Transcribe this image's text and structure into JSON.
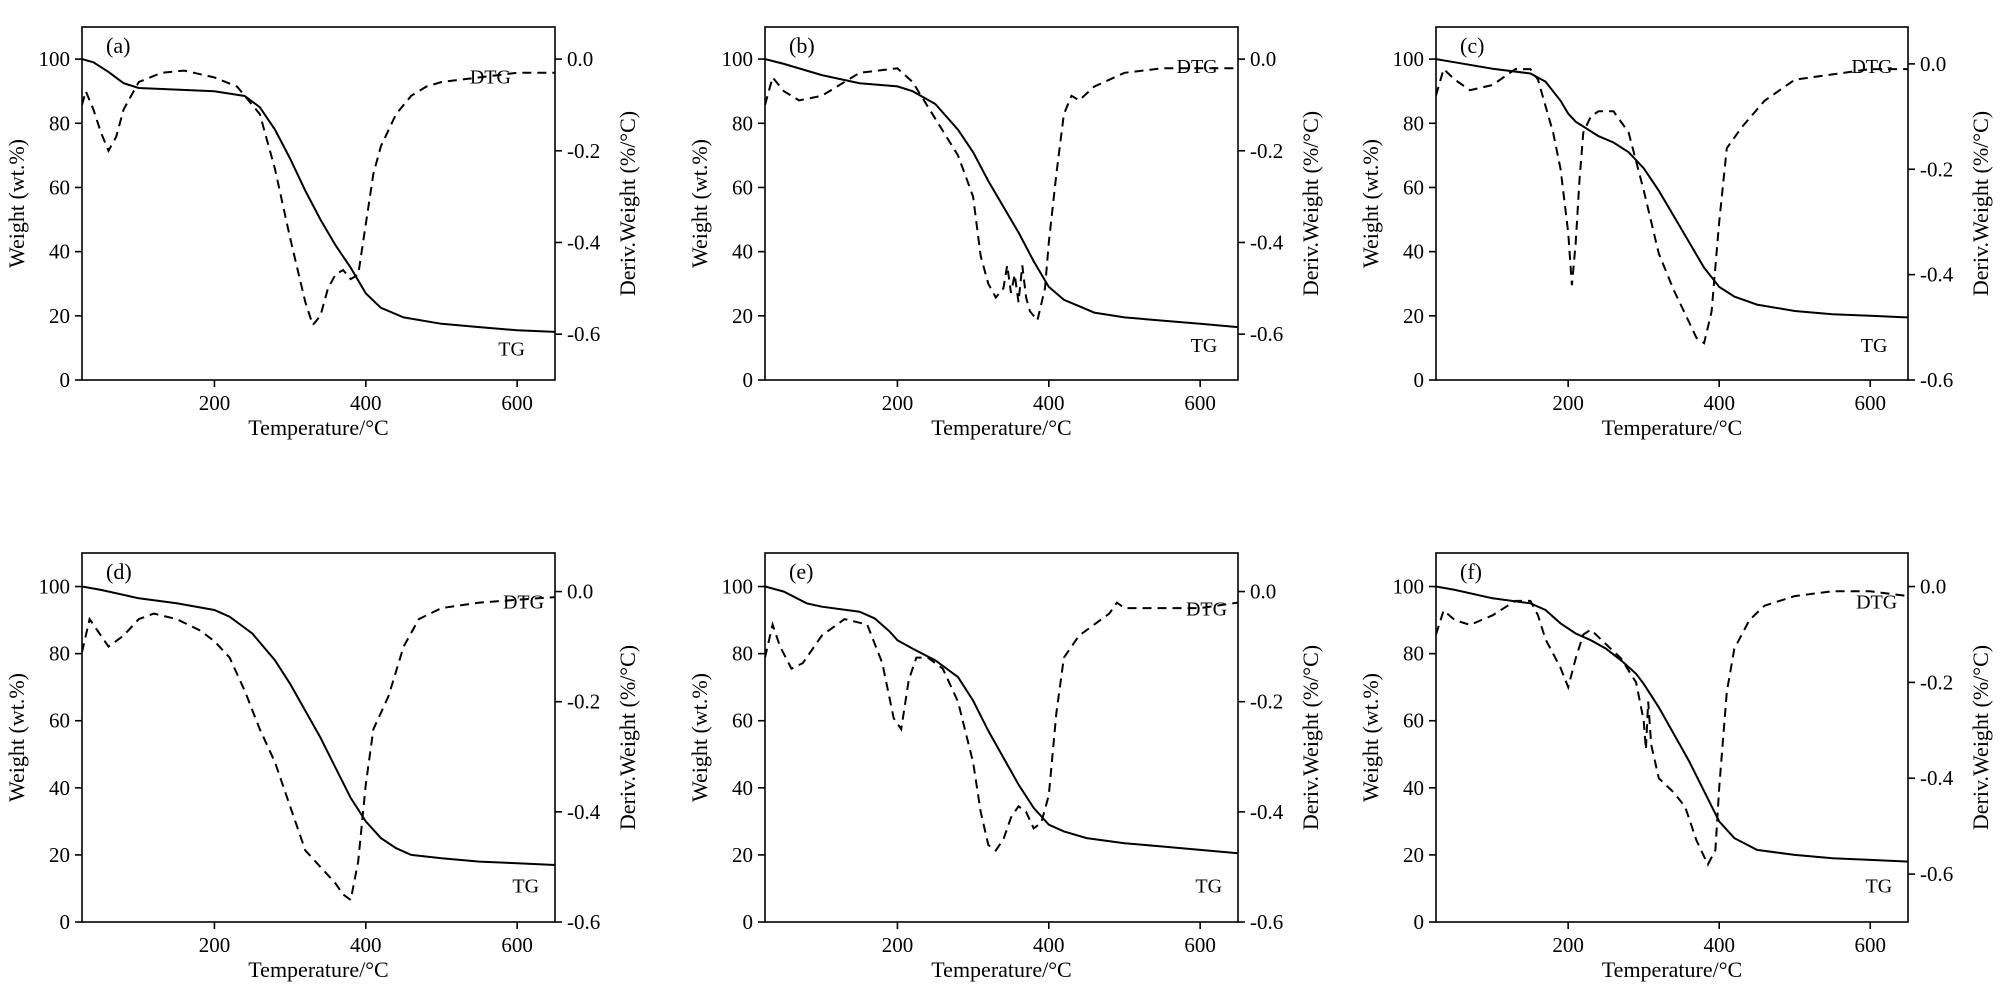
{
  "chart_data": [
    {
      "type": "line",
      "panel_label": "(a)",
      "xlabel": "Temperature/°C",
      "ylabel": "Weight (wt.%)",
      "y2label": "Deriv.Weight (%/°C)",
      "xlim": [
        25,
        650
      ],
      "ylim": [
        0,
        110
      ],
      "y2lim": [
        -0.7,
        0.07
      ],
      "xticks": [
        200,
        400,
        600
      ],
      "yticks": [
        0,
        20,
        40,
        60,
        80,
        100
      ],
      "y2ticks": [
        -0.6,
        -0.4,
        -0.2,
        0.0
      ],
      "grid": false,
      "series": [
        {
          "name": "TG",
          "axis": "left",
          "style": "solid",
          "x": [
            25,
            40,
            60,
            80,
            100,
            150,
            200,
            240,
            260,
            280,
            300,
            320,
            340,
            360,
            380,
            400,
            420,
            450,
            500,
            550,
            600,
            650
          ],
          "y": [
            100,
            99,
            96,
            92.5,
            91,
            90.5,
            90,
            88.5,
            85,
            78,
            69,
            59,
            50,
            42,
            35,
            27,
            22.5,
            19.5,
            17.5,
            16.5,
            15.5,
            15
          ]
        },
        {
          "name": "DTG",
          "axis": "right",
          "style": "dashed",
          "x": [
            25,
            30,
            40,
            50,
            60,
            70,
            80,
            100,
            130,
            160,
            200,
            230,
            260,
            280,
            300,
            320,
            330,
            340,
            350,
            360,
            370,
            380,
            390,
            400,
            410,
            420,
            440,
            460,
            480,
            500,
            550,
            600,
            650
          ],
          "y": [
            -0.1,
            -0.07,
            -0.11,
            -0.16,
            -0.2,
            -0.17,
            -0.11,
            -0.05,
            -0.03,
            -0.025,
            -0.04,
            -0.06,
            -0.12,
            -0.24,
            -0.39,
            -0.53,
            -0.58,
            -0.56,
            -0.5,
            -0.47,
            -0.46,
            -0.48,
            -0.47,
            -0.36,
            -0.25,
            -0.19,
            -0.12,
            -0.08,
            -0.06,
            -0.05,
            -0.04,
            -0.03,
            -0.03
          ]
        }
      ],
      "annotations": [
        "DTG",
        "TG"
      ]
    },
    {
      "type": "line",
      "panel_label": "(b)",
      "xlabel": "Temperature/°C",
      "ylabel": "Weight (wt.%)",
      "y2label": "Deriv.Weight (%/°C)",
      "xlim": [
        25,
        650
      ],
      "ylim": [
        0,
        110
      ],
      "y2lim": [
        -0.7,
        0.07
      ],
      "xticks": [
        200,
        400,
        600
      ],
      "yticks": [
        0,
        20,
        40,
        60,
        80,
        100
      ],
      "y2ticks": [
        -0.6,
        -0.4,
        -0.2,
        0.0
      ],
      "grid": false,
      "series": [
        {
          "name": "TG",
          "axis": "left",
          "style": "solid",
          "x": [
            25,
            50,
            100,
            150,
            200,
            220,
            250,
            280,
            300,
            320,
            340,
            360,
            380,
            400,
            420,
            440,
            460,
            500,
            550,
            600,
            650
          ],
          "y": [
            100,
            98.5,
            95,
            92.5,
            91.5,
            90,
            86,
            78,
            71,
            62,
            54,
            46,
            37,
            29,
            25,
            23,
            21,
            19.5,
            18.5,
            17.5,
            16.5
          ]
        },
        {
          "name": "DTG",
          "axis": "right",
          "style": "dashed",
          "x": [
            25,
            35,
            50,
            70,
            100,
            150,
            200,
            220,
            250,
            280,
            300,
            310,
            320,
            330,
            340,
            345,
            350,
            355,
            360,
            365,
            370,
            375,
            385,
            395,
            400,
            410,
            420,
            430,
            440,
            460,
            500,
            550,
            600,
            650
          ],
          "y": [
            -0.1,
            -0.04,
            -0.07,
            -0.09,
            -0.08,
            -0.03,
            -0.02,
            -0.05,
            -0.13,
            -0.21,
            -0.3,
            -0.43,
            -0.49,
            -0.52,
            -0.5,
            -0.45,
            -0.51,
            -0.47,
            -0.53,
            -0.45,
            -0.52,
            -0.55,
            -0.57,
            -0.5,
            -0.4,
            -0.25,
            -0.12,
            -0.08,
            -0.09,
            -0.06,
            -0.03,
            -0.02,
            -0.02,
            -0.02
          ]
        }
      ],
      "annotations": [
        "DTG",
        "TG"
      ]
    },
    {
      "type": "line",
      "panel_label": "(c)",
      "xlabel": "Temperature/°C",
      "ylabel": "Weight (wt.%)",
      "y2label": "Deriv.Weight (%/°C)",
      "xlim": [
        25,
        650
      ],
      "ylim": [
        0,
        110
      ],
      "y2lim": [
        -0.6,
        0.07
      ],
      "xticks": [
        200,
        400,
        600
      ],
      "yticks": [
        0,
        20,
        40,
        60,
        80,
        100
      ],
      "y2ticks": [
        -0.6,
        -0.4,
        -0.2,
        0.0
      ],
      "grid": false,
      "series": [
        {
          "name": "TG",
          "axis": "left",
          "style": "solid",
          "x": [
            25,
            50,
            100,
            150,
            170,
            190,
            200,
            210,
            220,
            240,
            260,
            280,
            300,
            320,
            340,
            360,
            380,
            400,
            420,
            450,
            500,
            550,
            600,
            650
          ],
          "y": [
            100,
            99,
            97,
            95.5,
            93,
            87,
            83,
            80.5,
            79,
            76,
            74,
            71,
            66,
            59,
            51,
            43,
            35,
            29,
            26,
            23.5,
            21.5,
            20.5,
            20,
            19.5
          ]
        },
        {
          "name": "DTG",
          "axis": "right",
          "style": "dashed",
          "x": [
            25,
            35,
            50,
            70,
            100,
            130,
            150,
            160,
            170,
            180,
            190,
            200,
            205,
            210,
            215,
            220,
            230,
            240,
            260,
            280,
            300,
            320,
            340,
            360,
            370,
            380,
            390,
            400,
            410,
            430,
            460,
            500,
            550,
            600,
            650
          ],
          "y": [
            -0.06,
            -0.01,
            -0.03,
            -0.05,
            -0.04,
            -0.01,
            -0.01,
            -0.03,
            -0.08,
            -0.13,
            -0.2,
            -0.32,
            -0.42,
            -0.34,
            -0.22,
            -0.13,
            -0.1,
            -0.09,
            -0.09,
            -0.13,
            -0.24,
            -0.36,
            -0.43,
            -0.49,
            -0.52,
            -0.53,
            -0.47,
            -0.3,
            -0.16,
            -0.12,
            -0.07,
            -0.03,
            -0.02,
            -0.01,
            -0.01
          ]
        }
      ],
      "annotations": [
        "DTG",
        "TG"
      ]
    },
    {
      "type": "line",
      "panel_label": "(d)",
      "xlabel": "Temperature/°C",
      "ylabel": "Weight (wt.%)",
      "y2label": "Deriv.Weight (%/°C)",
      "xlim": [
        25,
        650
      ],
      "ylim": [
        0,
        110
      ],
      "y2lim": [
        -0.6,
        0.07
      ],
      "xticks": [
        200,
        400,
        600
      ],
      "yticks": [
        0,
        20,
        40,
        60,
        80,
        100
      ],
      "y2ticks": [
        -0.6,
        -0.4,
        -0.2,
        0.0
      ],
      "grid": false,
      "series": [
        {
          "name": "TG",
          "axis": "left",
          "style": "solid",
          "x": [
            25,
            50,
            100,
            150,
            200,
            220,
            250,
            280,
            300,
            320,
            340,
            360,
            380,
            400,
            420,
            440,
            460,
            500,
            550,
            600,
            650
          ],
          "y": [
            100,
            99,
            96.5,
            95,
            93,
            91,
            86,
            78,
            71,
            63,
            55,
            46,
            37,
            30,
            25,
            22,
            20,
            19,
            18,
            17.5,
            17
          ]
        },
        {
          "name": "DTG",
          "axis": "right",
          "style": "dashed",
          "x": [
            25,
            35,
            45,
            60,
            80,
            100,
            120,
            150,
            180,
            200,
            220,
            240,
            260,
            280,
            300,
            320,
            340,
            360,
            370,
            380,
            390,
            400,
            410,
            430,
            450,
            470,
            500,
            550,
            600,
            650
          ],
          "y": [
            -0.11,
            -0.05,
            -0.07,
            -0.1,
            -0.08,
            -0.05,
            -0.04,
            -0.05,
            -0.07,
            -0.09,
            -0.12,
            -0.18,
            -0.25,
            -0.31,
            -0.39,
            -0.47,
            -0.5,
            -0.53,
            -0.55,
            -0.56,
            -0.49,
            -0.35,
            -0.25,
            -0.19,
            -0.1,
            -0.05,
            -0.03,
            -0.02,
            -0.015,
            -0.01
          ]
        }
      ],
      "annotations": [
        "DTG",
        "TG"
      ]
    },
    {
      "type": "line",
      "panel_label": "(e)",
      "xlabel": "Temperature/°C",
      "ylabel": "Weight (wt.%)",
      "y2label": "Deriv.Weight (%/°C)",
      "xlim": [
        25,
        650
      ],
      "ylim": [
        0,
        110
      ],
      "y2lim": [
        -0.6,
        0.07
      ],
      "xticks": [
        200,
        400,
        600
      ],
      "yticks": [
        0,
        20,
        40,
        60,
        80,
        100
      ],
      "y2ticks": [
        -0.6,
        -0.4,
        -0.2,
        0.0
      ],
      "grid": false,
      "series": [
        {
          "name": "TG",
          "axis": "left",
          "style": "solid",
          "x": [
            25,
            50,
            80,
            100,
            150,
            170,
            190,
            200,
            220,
            250,
            280,
            300,
            320,
            340,
            360,
            380,
            400,
            420,
            450,
            500,
            550,
            600,
            650
          ],
          "y": [
            100,
            98.5,
            95,
            94,
            92.5,
            90.5,
            86.5,
            84,
            81.5,
            78,
            73,
            66,
            57,
            49,
            41,
            34,
            29,
            27,
            25,
            23.5,
            22.5,
            21.5,
            20.5
          ]
        },
        {
          "name": "DTG",
          "axis": "right",
          "style": "dashed",
          "x": [
            25,
            35,
            45,
            60,
            75,
            100,
            130,
            160,
            180,
            195,
            205,
            215,
            225,
            240,
            260,
            280,
            300,
            310,
            320,
            330,
            340,
            350,
            360,
            370,
            380,
            390,
            400,
            410,
            420,
            440,
            460,
            480,
            490,
            500,
            550,
            600,
            650
          ],
          "y": [
            -0.12,
            -0.06,
            -0.1,
            -0.14,
            -0.13,
            -0.08,
            -0.05,
            -0.06,
            -0.13,
            -0.23,
            -0.25,
            -0.16,
            -0.12,
            -0.12,
            -0.14,
            -0.2,
            -0.31,
            -0.4,
            -0.46,
            -0.47,
            -0.45,
            -0.41,
            -0.39,
            -0.4,
            -0.43,
            -0.42,
            -0.37,
            -0.22,
            -0.12,
            -0.08,
            -0.06,
            -0.04,
            -0.02,
            -0.03,
            -0.03,
            -0.03,
            -0.02
          ]
        }
      ],
      "annotations": [
        "DTG",
        "TG"
      ]
    },
    {
      "type": "line",
      "panel_label": "(f)",
      "xlabel": "Temperature/°C",
      "ylabel": "Weight (wt.%)",
      "y2label": "Deriv.Weight (%/°C)",
      "xlim": [
        25,
        650
      ],
      "ylim": [
        0,
        110
      ],
      "y2lim": [
        -0.7,
        0.07
      ],
      "xticks": [
        200,
        400,
        600
      ],
      "yticks": [
        0,
        20,
        40,
        60,
        80,
        100
      ],
      "y2ticks": [
        -0.6,
        -0.4,
        -0.2,
        0.0
      ],
      "grid": false,
      "series": [
        {
          "name": "TG",
          "axis": "left",
          "style": "solid",
          "x": [
            25,
            50,
            100,
            150,
            170,
            190,
            210,
            230,
            250,
            270,
            290,
            300,
            320,
            340,
            360,
            380,
            400,
            420,
            450,
            500,
            550,
            600,
            650
          ],
          "y": [
            100,
            99,
            96.5,
            95,
            93,
            89,
            86,
            84,
            81.5,
            78,
            74,
            71,
            64,
            56,
            48,
            39,
            30,
            25,
            21.5,
            20,
            19,
            18.5,
            18
          ]
        },
        {
          "name": "DTG",
          "axis": "right",
          "style": "dashed",
          "x": [
            25,
            35,
            50,
            70,
            100,
            130,
            150,
            160,
            170,
            180,
            190,
            200,
            210,
            220,
            230,
            250,
            270,
            290,
            300,
            303,
            306,
            310,
            320,
            340,
            355,
            370,
            385,
            395,
            400,
            410,
            420,
            440,
            460,
            500,
            550,
            600,
            650
          ],
          "y": [
            -0.1,
            -0.05,
            -0.07,
            -0.08,
            -0.06,
            -0.03,
            -0.03,
            -0.06,
            -0.11,
            -0.14,
            -0.17,
            -0.21,
            -0.15,
            -0.1,
            -0.09,
            -0.12,
            -0.15,
            -0.2,
            -0.28,
            -0.34,
            -0.24,
            -0.33,
            -0.4,
            -0.43,
            -0.46,
            -0.53,
            -0.58,
            -0.55,
            -0.42,
            -0.22,
            -0.13,
            -0.07,
            -0.04,
            -0.02,
            -0.01,
            -0.01,
            -0.02
          ]
        }
      ],
      "annotations": [
        "DTG",
        "TG"
      ]
    }
  ]
}
